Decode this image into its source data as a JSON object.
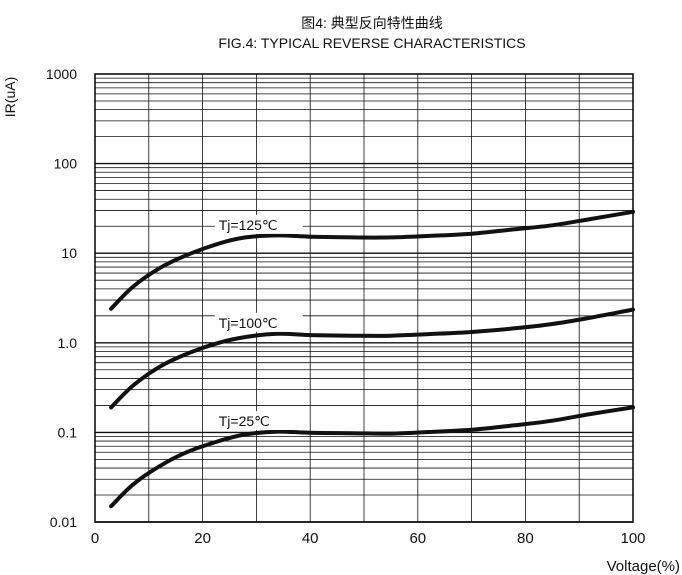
{
  "chart_data": {
    "type": "line",
    "title_cn": "图4: 典型反向特性曲线",
    "title": "FIG.4:  TYPICAL REVERSE CHARACTERISTICS",
    "xlabel": "Voltage(%)",
    "ylabel": "IR(uA)",
    "xscale": "linear",
    "yscale": "log",
    "xlim": [
      0,
      100
    ],
    "ylim": [
      0.01,
      1000
    ],
    "x_ticks": [
      0,
      20,
      40,
      60,
      80,
      100
    ],
    "x_tick_labels": [
      "0",
      "20",
      "40",
      "60",
      "80",
      "100"
    ],
    "y_ticks": [
      0.01,
      0.1,
      1.0,
      10,
      100,
      1000
    ],
    "y_tick_labels": [
      "0.01",
      "0.1",
      "1.0",
      "10",
      "100",
      "1000"
    ],
    "grid": true,
    "series": [
      {
        "name": "Tj=125℃",
        "x": [
          3,
          7,
          12,
          17,
          23,
          28,
          34,
          40,
          48,
          55,
          62,
          70,
          78,
          85,
          92,
          100
        ],
        "y": [
          2.4,
          4.2,
          6.8,
          9.5,
          12.8,
          15,
          15.8,
          15.3,
          15.0,
          15.0,
          15.6,
          16.5,
          18.5,
          20.5,
          24,
          29
        ]
      },
      {
        "name": "Tj=100℃",
        "x": [
          3,
          7,
          12,
          17,
          23,
          28,
          34,
          40,
          48,
          55,
          62,
          70,
          78,
          85,
          92,
          100
        ],
        "y": [
          0.19,
          0.33,
          0.54,
          0.75,
          1.0,
          1.16,
          1.26,
          1.22,
          1.2,
          1.2,
          1.25,
          1.32,
          1.45,
          1.62,
          1.9,
          2.35
        ]
      },
      {
        "name": "Tj=25℃",
        "x": [
          3,
          7,
          12,
          17,
          23,
          28,
          34,
          40,
          48,
          55,
          62,
          70,
          78,
          85,
          92,
          100
        ],
        "y": [
          0.015,
          0.026,
          0.042,
          0.06,
          0.08,
          0.095,
          0.102,
          0.099,
          0.098,
          0.097,
          0.101,
          0.107,
          0.12,
          0.135,
          0.16,
          0.19
        ]
      }
    ]
  },
  "style": {
    "line_color": "#111111",
    "grid_color": "#111111",
    "background": "#ffffff"
  }
}
